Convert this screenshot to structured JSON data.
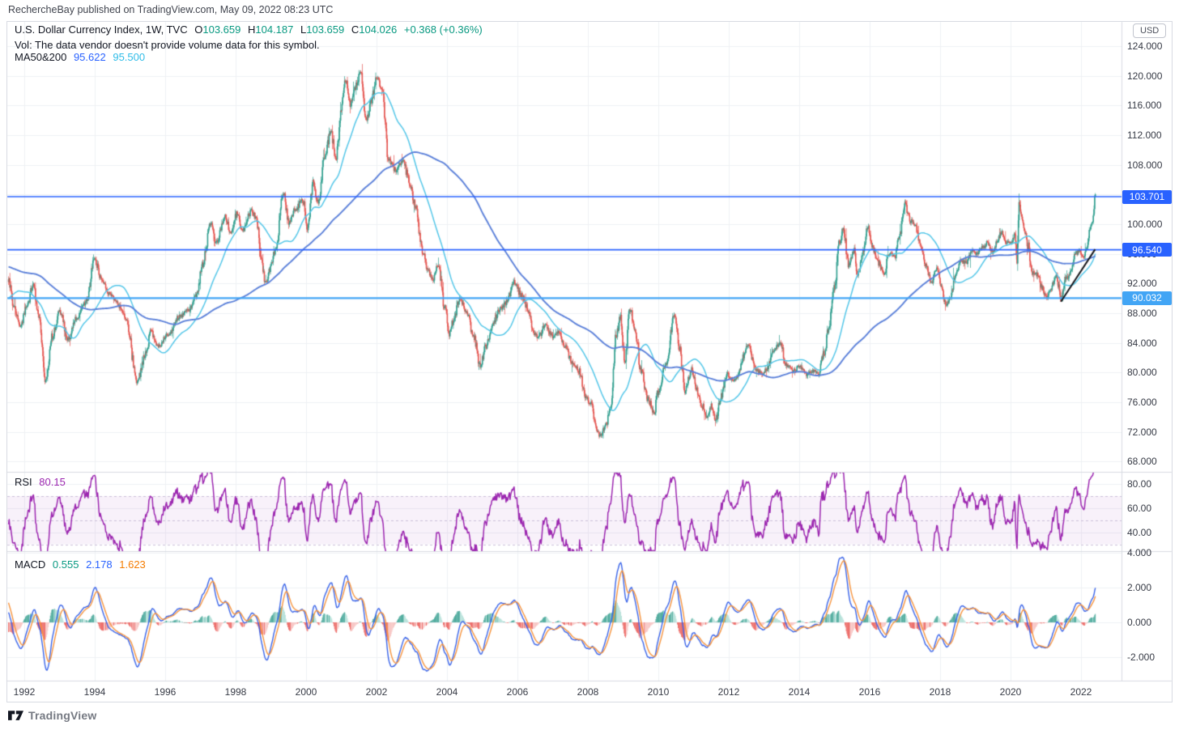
{
  "attribution": "RechercheBay published on TradingView.com, May 09, 2022 08:23 UTC",
  "header": {
    "symbol_title": "U.S. Dollar Currency Index, 1W, TVC",
    "ohlc": {
      "o_label": "O",
      "o": "103.659",
      "h_label": "H",
      "h": "104.187",
      "l_label": "L",
      "l": "103.659",
      "c_label": "C",
      "c": "104.026",
      "change": "+0.368 (+0.36%)"
    },
    "vol_note": "Vol: The data vendor doesn't provide volume data for this symbol.",
    "ma_label": "MA50&200",
    "ma50_value": "95.622",
    "ma200_value": "95.500"
  },
  "price_axis": {
    "currency": "USD",
    "ticks": [
      124,
      120,
      116,
      112,
      108,
      104,
      100,
      96,
      92,
      88,
      84,
      80,
      76,
      72,
      68
    ],
    "badges": [
      {
        "text": "103.701",
        "level": 103.701,
        "color": "#2962ff"
      },
      {
        "text": "96.540",
        "level": 96.54,
        "color": "#2962ff"
      },
      {
        "text": "90.032",
        "level": 90.032,
        "color": "#42a5f5"
      }
    ]
  },
  "rsi_panel": {
    "label": "RSI",
    "value": "80.15",
    "ticks": [
      80,
      60,
      40
    ],
    "band_levels": [
      70,
      50,
      30
    ]
  },
  "macd_panel": {
    "label": "MACD",
    "hist_value": "0.555",
    "macd_value": "2.178",
    "signal_value": "1.623",
    "ticks": [
      4,
      2,
      0,
      -2
    ]
  },
  "time_axis": {
    "years": [
      1992,
      1994,
      1996,
      1998,
      2000,
      2002,
      2004,
      2006,
      2008,
      2010,
      2012,
      2014,
      2016,
      2018,
      2020,
      2022
    ]
  },
  "footer": {
    "brand": "TradingView"
  },
  "chart_data": {
    "type": "candlestick",
    "symbol": "U.S. Dollar Currency Index (TVC), weekly",
    "x_domain_years": [
      1991.54,
      2022.45
    ],
    "price_ylim": [
      66.6,
      127.4
    ],
    "rsi_ylim": [
      24,
      90
    ],
    "macd_ylim": [
      -3.3,
      4.1
    ],
    "draw_from_year": 1991.54,
    "final_bar": {
      "open": 103.659,
      "high": 104.187,
      "low": 103.659,
      "close": 104.026
    },
    "ma50_last": 95.622,
    "ma200_last": 95.5,
    "rsi_last": 80.15,
    "macd_last": {
      "hist": 0.555,
      "macd": 2.178,
      "signal": 1.623
    },
    "indicators": {
      "ma_fast": 50,
      "ma_slow": 200,
      "rsi_period": 14,
      "macd_params": [
        12,
        26,
        9
      ]
    },
    "hlines": [
      {
        "level": 103.701,
        "color": "#2962ff",
        "width": 1.6
      },
      {
        "level": 96.54,
        "color": "#2962ff",
        "width": 1.6
      },
      {
        "level": 90.032,
        "color": "#42a5f5",
        "width": 2.2
      }
    ],
    "trendline": {
      "from": [
        2021.43,
        89.55
      ],
      "to": [
        2022.4,
        96.6
      ],
      "color": "#15161b",
      "width": 2
    },
    "price_anchors": [
      [
        1987.7,
        98
      ],
      [
        1988.2,
        92
      ],
      [
        1988.7,
        96.5
      ],
      [
        1989.2,
        102
      ],
      [
        1989.6,
        98
      ],
      [
        1990,
        94
      ],
      [
        1990.4,
        91
      ],
      [
        1990.8,
        85
      ],
      [
        1991.1,
        89
      ],
      [
        1991.3,
        96.5
      ],
      [
        1991.54,
        92.5
      ],
      [
        1991.7,
        89
      ],
      [
        1991.9,
        86.2
      ],
      [
        1992.05,
        88.5
      ],
      [
        1992.25,
        91.8
      ],
      [
        1992.4,
        88
      ],
      [
        1992.62,
        78.8
      ],
      [
        1992.8,
        85
      ],
      [
        1993,
        88.2
      ],
      [
        1993.25,
        84.5
      ],
      [
        1993.5,
        87.5
      ],
      [
        1993.75,
        89.5
      ],
      [
        1994,
        95.2
      ],
      [
        1994.2,
        92.5
      ],
      [
        1994.45,
        90.5
      ],
      [
        1994.7,
        89
      ],
      [
        1994.9,
        87
      ],
      [
        1995.2,
        78.8
      ],
      [
        1995.45,
        82.5
      ],
      [
        1995.6,
        85.5
      ],
      [
        1995.8,
        83.5
      ],
      [
        1996.1,
        85.2
      ],
      [
        1996.4,
        87.5
      ],
      [
        1996.7,
        88.5
      ],
      [
        1996.9,
        90.5
      ],
      [
        1997.05,
        94.5
      ],
      [
        1997.3,
        100
      ],
      [
        1997.45,
        97.5
      ],
      [
        1997.7,
        101
      ],
      [
        1997.85,
        99
      ],
      [
        1998.05,
        101.5
      ],
      [
        1998.2,
        99.2
      ],
      [
        1998.45,
        101.8
      ],
      [
        1998.6,
        100.5
      ],
      [
        1998.75,
        94.5
      ],
      [
        1998.85,
        92
      ],
      [
        1999,
        94.2
      ],
      [
        1999.15,
        97
      ],
      [
        1999.36,
        104.2
      ],
      [
        1999.5,
        100.2
      ],
      [
        1999.7,
        102
      ],
      [
        1999.9,
        103.3
      ],
      [
        2000.05,
        99.4
      ],
      [
        2000.2,
        105.8
      ],
      [
        2000.35,
        102.8
      ],
      [
        2000.55,
        109.5
      ],
      [
        2000.7,
        112.5
      ],
      [
        2000.85,
        108.8
      ],
      [
        2001,
        115.5
      ],
      [
        2001.12,
        119.5
      ],
      [
        2001.25,
        116
      ],
      [
        2001.4,
        118.5
      ],
      [
        2001.55,
        120.8
      ],
      [
        2001.7,
        113.8
      ],
      [
        2001.85,
        116.5
      ],
      [
        2002,
        119.8
      ],
      [
        2002.15,
        118
      ],
      [
        2002.35,
        108.5
      ],
      [
        2002.55,
        107.2
      ],
      [
        2002.75,
        108.5
      ],
      [
        2002.95,
        105.5
      ],
      [
        2003.1,
        102.5
      ],
      [
        2003.3,
        96.5
      ],
      [
        2003.45,
        94
      ],
      [
        2003.6,
        92.5
      ],
      [
        2003.75,
        94.5
      ],
      [
        2003.95,
        88.5
      ],
      [
        2004.05,
        85
      ],
      [
        2004.2,
        87.2
      ],
      [
        2004.35,
        89.8
      ],
      [
        2004.55,
        88.3
      ],
      [
        2004.75,
        85
      ],
      [
        2004.95,
        80.8
      ],
      [
        2005.1,
        83.5
      ],
      [
        2005.3,
        86.5
      ],
      [
        2005.5,
        88.5
      ],
      [
        2005.7,
        89.5
      ],
      [
        2005.9,
        92.3
      ],
      [
        2006.1,
        90.5
      ],
      [
        2006.3,
        88.5
      ],
      [
        2006.45,
        85.3
      ],
      [
        2006.6,
        84.8
      ],
      [
        2006.8,
        86.5
      ],
      [
        2007,
        84.8
      ],
      [
        2007.15,
        85.5
      ],
      [
        2007.35,
        83.5
      ],
      [
        2007.55,
        81.5
      ],
      [
        2007.75,
        80.2
      ],
      [
        2007.95,
        76.5
      ],
      [
        2008.1,
        75.8
      ],
      [
        2008.25,
        72
      ],
      [
        2008.35,
        71.5
      ],
      [
        2008.5,
        72.8
      ],
      [
        2008.65,
        75.5
      ],
      [
        2008.8,
        85
      ],
      [
        2008.92,
        87.5
      ],
      [
        2009.05,
        81.5
      ],
      [
        2009.2,
        88.5
      ],
      [
        2009.35,
        85.5
      ],
      [
        2009.5,
        80.5
      ],
      [
        2009.7,
        76.5
      ],
      [
        2009.88,
        74.5
      ],
      [
        2010,
        77.5
      ],
      [
        2010.2,
        81
      ],
      [
        2010.45,
        87.5
      ],
      [
        2010.6,
        83.5
      ],
      [
        2010.75,
        77.5
      ],
      [
        2010.95,
        80.5
      ],
      [
        2011.1,
        77.5
      ],
      [
        2011.25,
        75.5
      ],
      [
        2011.37,
        74
      ],
      [
        2011.5,
        75.5
      ],
      [
        2011.62,
        73.5
      ],
      [
        2011.8,
        77
      ],
      [
        2011.95,
        79.8
      ],
      [
        2012.1,
        79
      ],
      [
        2012.25,
        79.5
      ],
      [
        2012.4,
        82
      ],
      [
        2012.55,
        83.8
      ],
      [
        2012.75,
        80.5
      ],
      [
        2012.95,
        79.8
      ],
      [
        2013.1,
        80.5
      ],
      [
        2013.25,
        82.8
      ],
      [
        2013.45,
        84
      ],
      [
        2013.65,
        80.9
      ],
      [
        2013.85,
        80.3
      ],
      [
        2014,
        80.8
      ],
      [
        2014.2,
        79.8
      ],
      [
        2014.4,
        80.2
      ],
      [
        2014.55,
        79.9
      ],
      [
        2014.7,
        82.5
      ],
      [
        2014.85,
        86.5
      ],
      [
        2015,
        91.5
      ],
      [
        2015.15,
        97.5
      ],
      [
        2015.25,
        99.5
      ],
      [
        2015.4,
        94.5
      ],
      [
        2015.55,
        96.5
      ],
      [
        2015.65,
        93
      ],
      [
        2015.8,
        96.2
      ],
      [
        2015.95,
        99.8
      ],
      [
        2016.1,
        96.5
      ],
      [
        2016.25,
        94.8
      ],
      [
        2016.4,
        93.2
      ],
      [
        2016.55,
        96
      ],
      [
        2016.7,
        95.5
      ],
      [
        2016.85,
        98.5
      ],
      [
        2017,
        102.8
      ],
      [
        2017.15,
        100.5
      ],
      [
        2017.3,
        99.6
      ],
      [
        2017.45,
        97
      ],
      [
        2017.6,
        94.5
      ],
      [
        2017.75,
        92
      ],
      [
        2017.9,
        94
      ],
      [
        2018.05,
        91.5
      ],
      [
        2018.15,
        89.2
      ],
      [
        2018.3,
        90
      ],
      [
        2018.45,
        93.5
      ],
      [
        2018.6,
        95
      ],
      [
        2018.75,
        94.8
      ],
      [
        2018.9,
        96.5
      ],
      [
        2019.05,
        96
      ],
      [
        2019.2,
        96.8
      ],
      [
        2019.35,
        97.5
      ],
      [
        2019.5,
        96.2
      ],
      [
        2019.65,
        98
      ],
      [
        2019.75,
        99
      ],
      [
        2019.9,
        97.5
      ],
      [
        2020.05,
        97.8
      ],
      [
        2020.12,
        98.8
      ],
      [
        2020.18,
        95.2
      ],
      [
        2020.24,
        102.5
      ],
      [
        2020.35,
        100
      ],
      [
        2020.5,
        97
      ],
      [
        2020.6,
        93.5
      ],
      [
        2020.75,
        93.2
      ],
      [
        2020.9,
        91.5
      ],
      [
        2021,
        90
      ],
      [
        2021.1,
        90.6
      ],
      [
        2021.2,
        92
      ],
      [
        2021.3,
        93.2
      ],
      [
        2021.43,
        89.9
      ],
      [
        2021.55,
        92.5
      ],
      [
        2021.7,
        93.4
      ],
      [
        2021.85,
        96
      ],
      [
        2021.95,
        96.3
      ],
      [
        2022.05,
        95.6
      ],
      [
        2022.15,
        96.6
      ],
      [
        2022.25,
        98.8
      ],
      [
        2022.35,
        101.2
      ],
      [
        2022.42,
        104.03
      ]
    ],
    "colors": {
      "up": "#2f9e8e",
      "down": "#e4544f",
      "ma_fast": "#53c6e8",
      "ma_slow": "#5b80d9",
      "grid": "#eef0f4",
      "separator": "#d8dbe2",
      "rsi": "#9c27b0",
      "rsi_band": "rgba(171,71,188,0.08)",
      "rsi_dash": "#cbbfd9",
      "macd_line": "#3a64e8",
      "signal_line": "#f6933c",
      "hist_pos": "#2e9b8b",
      "hist_pos_weak": "#aadcd3",
      "hist_neg": "#e9514d",
      "hist_neg_weak": "#f6bcba"
    }
  }
}
